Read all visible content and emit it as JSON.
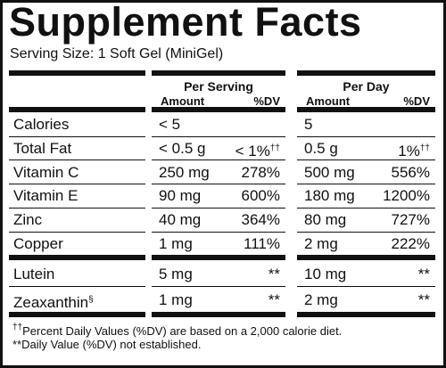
{
  "title": "Supplement Facts",
  "serving_size": "Serving Size: 1 Soft Gel (MiniGel)",
  "table": {
    "groups": [
      {
        "title": "Per Serving",
        "amount": "Amount",
        "dv": "%DV"
      },
      {
        "title": "Per Day",
        "amount": "Amount",
        "dv": "%DV"
      }
    ],
    "sections": [
      [
        {
          "name": "Calories",
          "cells": [
            {
              "amount": "< 5"
            },
            {
              "amount": "5"
            }
          ]
        },
        {
          "name": "Total Fat",
          "cells": [
            {
              "amount": "< 0.5 g",
              "dv": "< 1%",
              "dv_note": "††"
            },
            {
              "amount": "0.5 g",
              "dv": "1%",
              "dv_note": "††"
            }
          ]
        },
        {
          "name": "Vitamin C",
          "cells": [
            {
              "amount": "250 mg",
              "dv": "278%"
            },
            {
              "amount": "500 mg",
              "dv": "556%"
            }
          ]
        },
        {
          "name": "Vitamin E",
          "cells": [
            {
              "amount": "90 mg",
              "dv": "600%"
            },
            {
              "amount": "180 mg",
              "dv": "1200%"
            }
          ]
        },
        {
          "name": "Zinc",
          "cells": [
            {
              "amount": "40 mg",
              "dv": "364%"
            },
            {
              "amount": "80 mg",
              "dv": "727%"
            }
          ]
        },
        {
          "name": "Copper",
          "cells": [
            {
              "amount": "1 mg",
              "dv": "111%"
            },
            {
              "amount": "2 mg",
              "dv": "222%"
            }
          ]
        }
      ],
      [
        {
          "name": "Lutein",
          "cells": [
            {
              "amount": "5 mg",
              "dv": "**"
            },
            {
              "amount": "10 mg",
              "dv": "**"
            }
          ]
        },
        {
          "name": "Zeaxanthin",
          "name_note": "§",
          "cells": [
            {
              "amount": "1 mg",
              "dv": "**"
            },
            {
              "amount": "2 mg",
              "dv": "**"
            }
          ]
        }
      ]
    ]
  },
  "footnotes": [
    {
      "mark": "††",
      "text": "Percent Daily Values (%DV) are based on a 2,000 calorie diet."
    },
    {
      "text": "**Daily Value (%DV) not established."
    }
  ]
}
